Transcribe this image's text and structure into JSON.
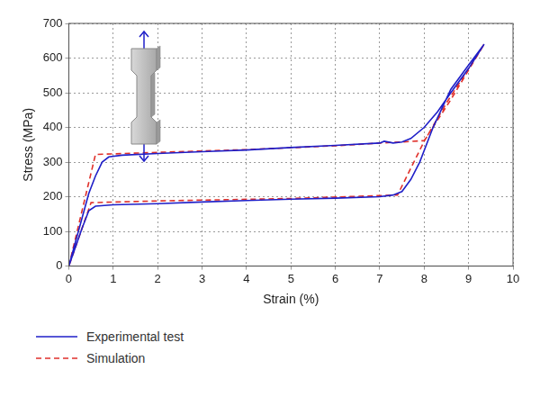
{
  "chart_data": {
    "type": "line",
    "x_label": "Strain (%)",
    "y_label": "Stress (MPa)",
    "xlim": [
      0,
      10
    ],
    "xticks": [
      0,
      1,
      2,
      3,
      4,
      5,
      6,
      7,
      8,
      9,
      10
    ],
    "ylim": [
      0,
      700
    ],
    "yticks": [
      0,
      100,
      200,
      300,
      400,
      500,
      600,
      700
    ],
    "grid": true,
    "legend": "bottom",
    "series": [
      {
        "name": "Experimental test",
        "color": "#1f1fc8",
        "line_style": "solid",
        "x": [
          0,
          0.3,
          0.45,
          0.6,
          0.75,
          0.9,
          1.2,
          2,
          3,
          4,
          5,
          6,
          7,
          7.1,
          7.3,
          7.5,
          7.7,
          8,
          8.3,
          8.6,
          9,
          9.35,
          9.0,
          8.6,
          8.2,
          7.9,
          7.7,
          7.5,
          7.3,
          7,
          6,
          5,
          4,
          3,
          2,
          1,
          0.6,
          0.45,
          0.3,
          0
        ],
        "values": [
          0,
          140,
          210,
          260,
          300,
          315,
          320,
          325,
          330,
          335,
          342,
          348,
          355,
          360,
          355,
          358,
          368,
          400,
          445,
          500,
          570,
          640,
          580,
          510,
          400,
          300,
          250,
          215,
          205,
          200,
          196,
          193,
          189,
          185,
          180,
          177,
          173,
          160,
          110,
          0
        ]
      },
      {
        "name": "Simulation",
        "color": "#e0312b",
        "line_style": "dashed",
        "x": [
          0,
          0.4,
          0.6,
          2,
          4,
          6,
          7,
          7.5,
          8,
          8.6,
          9.35,
          8.5,
          8,
          7.4,
          5,
          2,
          0.5,
          0
        ],
        "values": [
          0,
          215,
          322,
          328,
          336,
          347,
          355,
          358,
          362,
          480,
          640,
          470,
          360,
          205,
          195,
          188,
          183,
          0
        ]
      }
    ]
  }
}
